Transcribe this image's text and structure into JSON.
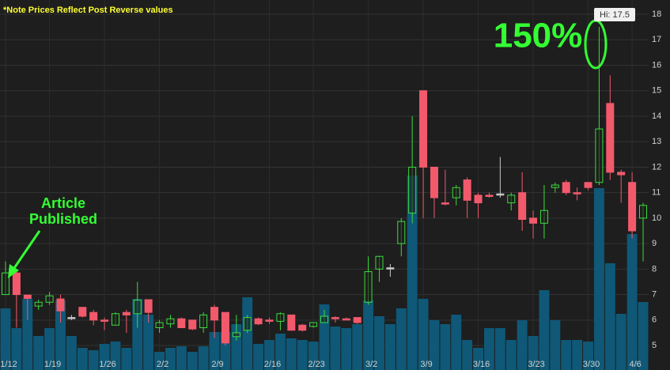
{
  "chart_data": {
    "type": "candlestick",
    "note": "*Note Prices Reflect Post Reverse values",
    "annotations": {
      "article": [
        "Article",
        "Published"
      ],
      "gain": "150%",
      "hi_label": "Hi: 17.5"
    },
    "categories": [
      "1/12",
      null,
      null,
      null,
      "1/19",
      null,
      null,
      null,
      null,
      "1/26",
      null,
      null,
      null,
      null,
      "2/2",
      null,
      null,
      null,
      null,
      "2/9",
      null,
      null,
      null,
      null,
      "2/16",
      null,
      null,
      null,
      "2/23",
      null,
      null,
      null,
      null,
      "3/2",
      null,
      null,
      null,
      null,
      "3/9",
      null,
      null,
      null,
      null,
      "3/16",
      null,
      null,
      null,
      null,
      "3/23",
      null,
      null,
      null,
      null,
      "3/30",
      null,
      null,
      null,
      "4/6",
      null
    ],
    "open": [
      7.0,
      7.85,
      6.98,
      6.55,
      6.7,
      6.83,
      6.1,
      6.5,
      6.3,
      6.0,
      5.8,
      6.3,
      6.25,
      6.8,
      5.7,
      5.85,
      6.05,
      6.0,
      5.7,
      6.5,
      6.3,
      5.35,
      5.6,
      6.05,
      6.0,
      5.95,
      6.2,
      5.8,
      5.75,
      5.9,
      6.1,
      6.05,
      6.1,
      6.7,
      8.0,
      8.05,
      9.0,
      10.2,
      15.0,
      12.0,
      10.6,
      10.8,
      11.5,
      10.9,
      10.9,
      10.95,
      10.6,
      11.0,
      10.0,
      9.8,
      11.2,
      11.4,
      11.0,
      11.4,
      11.4,
      14.5,
      11.8,
      11.4,
      10.0
    ],
    "high": [
      8.3,
      8.0,
      7.0,
      6.8,
      7.1,
      7.0,
      6.2,
      6.5,
      6.4,
      6.1,
      6.3,
      6.4,
      7.5,
      6.8,
      6.0,
      6.2,
      6.1,
      6.0,
      6.3,
      6.6,
      6.3,
      6.2,
      6.2,
      6.1,
      6.1,
      6.3,
      6.2,
      5.85,
      5.9,
      6.4,
      6.15,
      6.1,
      6.1,
      8.5,
      8.5,
      8.2,
      10.0,
      14.0,
      15.0,
      12.0,
      11.9,
      11.3,
      11.6,
      11.0,
      11.0,
      12.4,
      11.0,
      11.8,
      10.3,
      11.3,
      11.4,
      11.5,
      11.2,
      11.4,
      17.5,
      15.6,
      11.9,
      11.8,
      10.6
    ],
    "low": [
      7.0,
      5.7,
      6.0,
      6.4,
      6.6,
      5.9,
      6.0,
      6.1,
      5.8,
      5.6,
      5.8,
      5.5,
      5.7,
      5.9,
      5.5,
      5.7,
      5.7,
      5.6,
      5.5,
      5.3,
      5.0,
      5.2,
      5.5,
      5.8,
      5.85,
      5.6,
      5.6,
      5.55,
      5.7,
      5.9,
      5.9,
      6.0,
      5.85,
      6.6,
      7.5,
      7.7,
      8.5,
      9.8,
      10.0,
      10.0,
      10.5,
      10.5,
      10.0,
      10.0,
      10.8,
      10.8,
      10.3,
      9.5,
      9.2,
      9.2,
      11.0,
      10.9,
      10.7,
      11.1,
      11.3,
      11.5,
      10.6,
      9.2,
      8.3
    ],
    "close": [
      7.85,
      7.0,
      6.85,
      6.7,
      6.95,
      6.36,
      6.1,
      6.15,
      6.0,
      5.95,
      6.25,
      6.2,
      6.78,
      6.3,
      5.9,
      6.05,
      5.7,
      5.65,
      6.2,
      6.0,
      5.1,
      5.5,
      6.1,
      5.85,
      5.95,
      6.25,
      5.6,
      5.6,
      5.9,
      6.15,
      6.05,
      6.0,
      5.9,
      7.9,
      8.5,
      8.05,
      9.87,
      12.0,
      12.0,
      10.8,
      10.55,
      11.2,
      10.7,
      10.6,
      10.85,
      10.95,
      10.9,
      9.95,
      9.8,
      10.3,
      11.3,
      11.0,
      10.95,
      11.2,
      13.5,
      11.8,
      11.7,
      9.5,
      10.5
    ],
    "volume": [
      78,
      53,
      90,
      43,
      53,
      88,
      43,
      28,
      25,
      33,
      36,
      28,
      90,
      70,
      23,
      28,
      30,
      23,
      30,
      48,
      48,
      58,
      92,
      33,
      38,
      46,
      40,
      38,
      36,
      83,
      55,
      53,
      58,
      88,
      68,
      58,
      78,
      246,
      90,
      63,
      58,
      70,
      38,
      28,
      53,
      53,
      38,
      63,
      43,
      101,
      63,
      38,
      38,
      36,
      230,
      135,
      71,
      172,
      86
    ],
    "up_color": "#3ddc3d",
    "down_color": "#f25a6c",
    "flat_color": "#c8c8c8",
    "volume_color": "#0f5877",
    "ylim": [
      4.04,
      18.56
    ],
    "yticks": [
      5,
      6,
      7,
      8,
      9,
      10,
      11,
      12,
      13,
      14,
      15,
      16,
      17,
      18
    ],
    "grid": true
  }
}
